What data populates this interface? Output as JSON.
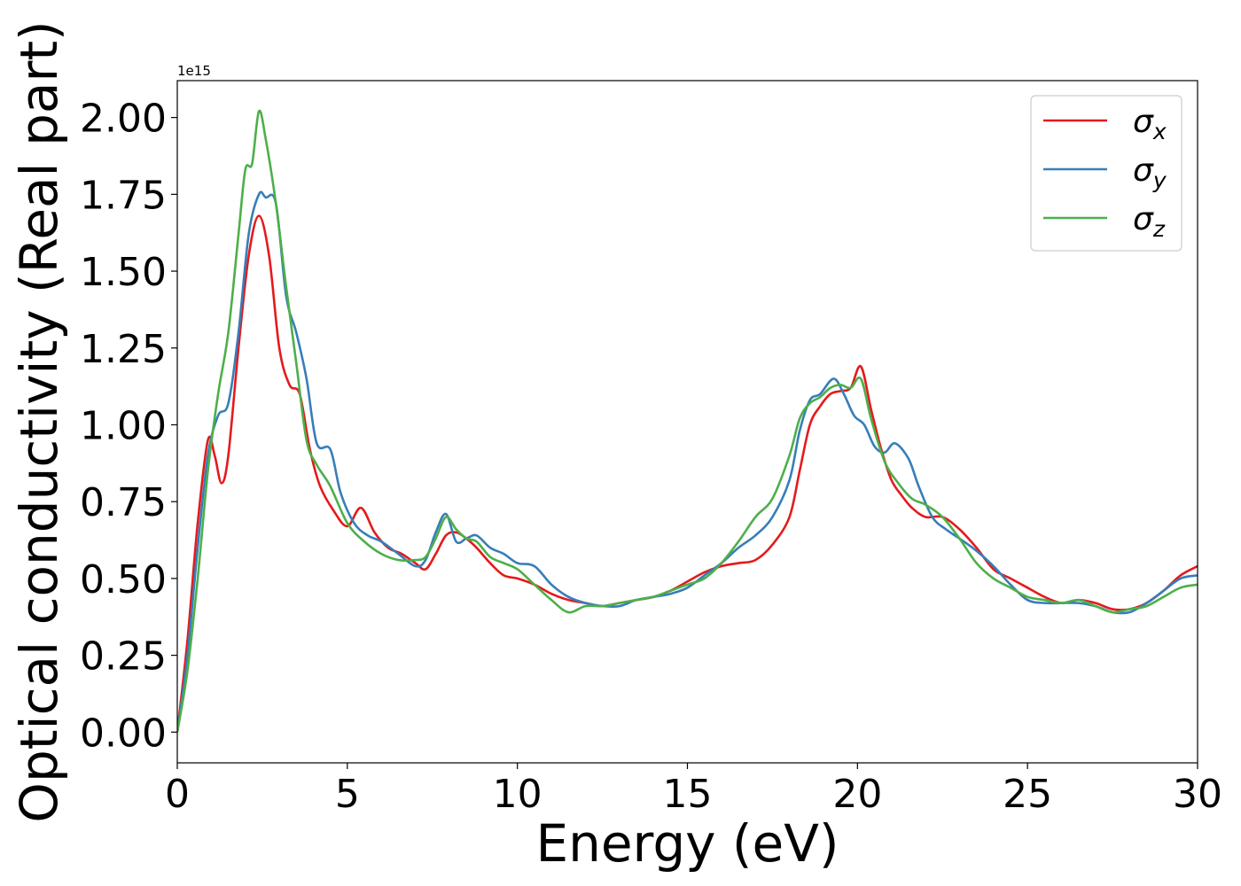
{
  "chart_data": {
    "type": "line",
    "title": "",
    "xlabel": "Energy (eV)",
    "ylabel": "Optical conductivity (Real part)",
    "offset_text": "1e15",
    "xlim": [
      0,
      30
    ],
    "ylim": [
      -0.1,
      2.12
    ],
    "xticks": [
      0,
      5,
      10,
      15,
      20,
      25,
      30
    ],
    "xtick_labels": [
      "0",
      "5",
      "10",
      "15",
      "20",
      "25",
      "30"
    ],
    "yticks": [
      0.0,
      0.25,
      0.5,
      0.75,
      1.0,
      1.25,
      1.5,
      1.75,
      2.0
    ],
    "ytick_labels": [
      "0.00",
      "0.25",
      "0.50",
      "0.75",
      "1.00",
      "1.25",
      "1.50",
      "1.75",
      "2.00"
    ],
    "grid": false,
    "legend_position": "top-right",
    "series": [
      {
        "name": "σx",
        "name_base": "σ",
        "name_sub": "x",
        "color": "#e41a1c",
        "x": [
          0,
          0.3,
          0.6,
          0.9,
          1.1,
          1.3,
          1.5,
          1.8,
          2.1,
          2.4,
          2.7,
          3.0,
          3.3,
          3.6,
          3.9,
          4.2,
          4.6,
          5.0,
          5.4,
          5.8,
          6.2,
          6.6,
          7.0,
          7.3,
          7.6,
          7.9,
          8.2,
          8.5,
          8.8,
          9.2,
          9.6,
          10.0,
          10.5,
          11.0,
          11.5,
          12.0,
          12.5,
          13.0,
          13.5,
          14.0,
          14.5,
          15.0,
          15.5,
          16.0,
          16.5,
          17.0,
          17.5,
          18.0,
          18.3,
          18.6,
          18.9,
          19.2,
          19.5,
          19.8,
          20.1,
          20.4,
          20.7,
          21.0,
          21.3,
          21.6,
          22.0,
          22.5,
          23.0,
          23.5,
          24.0,
          24.5,
          25.0,
          25.5,
          26.0,
          26.5,
          27.0,
          27.5,
          28.0,
          28.5,
          29.0,
          29.5,
          30.0
        ],
        "y": [
          0.0,
          0.3,
          0.68,
          0.95,
          0.9,
          0.81,
          0.9,
          1.25,
          1.55,
          1.68,
          1.55,
          1.25,
          1.13,
          1.1,
          0.92,
          0.8,
          0.72,
          0.67,
          0.73,
          0.65,
          0.6,
          0.58,
          0.55,
          0.53,
          0.58,
          0.64,
          0.65,
          0.63,
          0.6,
          0.55,
          0.51,
          0.5,
          0.48,
          0.45,
          0.43,
          0.42,
          0.41,
          0.42,
          0.43,
          0.44,
          0.46,
          0.49,
          0.52,
          0.54,
          0.55,
          0.56,
          0.61,
          0.7,
          0.85,
          1.0,
          1.06,
          1.1,
          1.11,
          1.12,
          1.19,
          1.05,
          0.92,
          0.82,
          0.77,
          0.73,
          0.7,
          0.7,
          0.66,
          0.6,
          0.53,
          0.5,
          0.47,
          0.44,
          0.42,
          0.43,
          0.42,
          0.4,
          0.4,
          0.42,
          0.46,
          0.51,
          0.54
        ]
      },
      {
        "name": "σy",
        "name_base": "σ",
        "name_sub": "y",
        "color": "#377eb8",
        "x": [
          0,
          0.3,
          0.6,
          0.9,
          1.2,
          1.5,
          1.8,
          2.1,
          2.4,
          2.6,
          2.9,
          3.2,
          3.5,
          3.8,
          4.1,
          4.5,
          4.8,
          5.2,
          5.6,
          6.0,
          6.5,
          7.0,
          7.3,
          7.6,
          7.9,
          8.2,
          8.5,
          8.8,
          9.2,
          9.6,
          10.0,
          10.5,
          11.0,
          11.5,
          12.0,
          12.5,
          13.0,
          13.5,
          14.0,
          14.5,
          15.0,
          15.5,
          16.0,
          16.5,
          17.0,
          17.5,
          18.0,
          18.3,
          18.6,
          18.9,
          19.3,
          19.6,
          19.9,
          20.2,
          20.5,
          20.8,
          21.1,
          21.5,
          21.8,
          22.2,
          22.6,
          23.0,
          23.5,
          24.0,
          24.5,
          25.0,
          25.5,
          26.0,
          26.5,
          27.0,
          27.5,
          28.0,
          28.5,
          29.0,
          29.5,
          30.0
        ],
        "y": [
          0.0,
          0.25,
          0.6,
          0.9,
          1.03,
          1.07,
          1.3,
          1.62,
          1.75,
          1.74,
          1.72,
          1.42,
          1.3,
          1.15,
          0.94,
          0.92,
          0.78,
          0.68,
          0.64,
          0.62,
          0.58,
          0.54,
          0.56,
          0.65,
          0.71,
          0.62,
          0.63,
          0.64,
          0.6,
          0.58,
          0.55,
          0.54,
          0.48,
          0.44,
          0.42,
          0.41,
          0.41,
          0.43,
          0.44,
          0.45,
          0.47,
          0.51,
          0.55,
          0.6,
          0.64,
          0.7,
          0.82,
          0.98,
          1.08,
          1.1,
          1.15,
          1.1,
          1.03,
          1.0,
          0.93,
          0.91,
          0.94,
          0.89,
          0.8,
          0.7,
          0.66,
          0.63,
          0.59,
          0.54,
          0.48,
          0.43,
          0.42,
          0.42,
          0.42,
          0.41,
          0.39,
          0.39,
          0.42,
          0.46,
          0.5,
          0.51
        ]
      },
      {
        "name": "σz",
        "name_base": "σ",
        "name_sub": "z",
        "color": "#4daf4a",
        "x": [
          0,
          0.3,
          0.6,
          0.9,
          1.2,
          1.5,
          1.8,
          2.0,
          2.2,
          2.4,
          2.6,
          2.9,
          3.2,
          3.5,
          3.8,
          4.1,
          4.5,
          5.0,
          5.5,
          6.0,
          6.5,
          7.0,
          7.3,
          7.6,
          7.9,
          8.2,
          8.5,
          8.8,
          9.2,
          9.6,
          10.0,
          10.5,
          11.0,
          11.5,
          12.0,
          12.5,
          13.0,
          13.5,
          14.0,
          14.5,
          15.0,
          15.5,
          16.0,
          16.5,
          17.0,
          17.5,
          18.0,
          18.3,
          18.6,
          18.9,
          19.2,
          19.5,
          19.8,
          20.1,
          20.4,
          20.8,
          21.2,
          21.6,
          22.0,
          22.5,
          23.0,
          23.5,
          24.0,
          24.5,
          25.0,
          25.5,
          26.0,
          26.5,
          27.0,
          27.5,
          28.0,
          28.5,
          29.0,
          29.5,
          30.0
        ],
        "y": [
          0.0,
          0.2,
          0.5,
          0.85,
          1.1,
          1.3,
          1.62,
          1.83,
          1.85,
          2.02,
          1.93,
          1.72,
          1.45,
          1.2,
          0.95,
          0.87,
          0.8,
          0.68,
          0.62,
          0.58,
          0.56,
          0.56,
          0.57,
          0.63,
          0.7,
          0.66,
          0.63,
          0.62,
          0.57,
          0.55,
          0.53,
          0.48,
          0.43,
          0.39,
          0.41,
          0.41,
          0.42,
          0.43,
          0.44,
          0.46,
          0.48,
          0.5,
          0.55,
          0.62,
          0.7,
          0.76,
          0.9,
          1.02,
          1.07,
          1.09,
          1.12,
          1.13,
          1.12,
          1.15,
          1.02,
          0.88,
          0.81,
          0.76,
          0.74,
          0.7,
          0.63,
          0.55,
          0.5,
          0.47,
          0.44,
          0.43,
          0.42,
          0.43,
          0.41,
          0.39,
          0.4,
          0.41,
          0.44,
          0.47,
          0.48
        ]
      }
    ]
  }
}
